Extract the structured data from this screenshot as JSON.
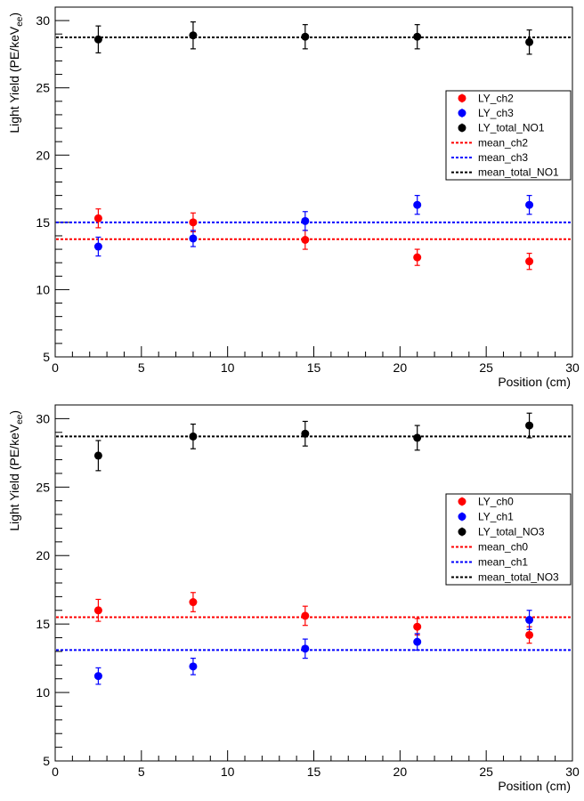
{
  "chart_data": [
    {
      "type": "scatter",
      "xlabel": "Position (cm)",
      "ylabel": "Light Yield (PE/keV",
      "ylabel_sub": "ee",
      "ylabel_close": ")",
      "xlim": [
        0,
        30
      ],
      "ylim": [
        5,
        31
      ],
      "xticks": [
        0,
        5,
        10,
        15,
        20,
        25,
        30
      ],
      "yticks": [
        5,
        10,
        15,
        20,
        25,
        30
      ],
      "grid": false,
      "legend_position": "right",
      "x": [
        2.5,
        8,
        14.5,
        21,
        27.5
      ],
      "series": [
        {
          "name": "LY_ch2",
          "color": "#ff0000",
          "values": [
            15.3,
            15.0,
            13.7,
            12.4,
            12.1
          ],
          "errors": [
            0.7,
            0.7,
            0.7,
            0.6,
            0.6
          ]
        },
        {
          "name": "LY_ch3",
          "color": "#0000ff",
          "values": [
            13.2,
            13.8,
            15.1,
            16.3,
            16.3
          ],
          "errors": [
            0.7,
            0.6,
            0.7,
            0.7,
            0.7
          ]
        },
        {
          "name": "LY_total_NO1",
          "color": "#000000",
          "values": [
            28.6,
            28.9,
            28.8,
            28.8,
            28.4
          ],
          "errors": [
            1.0,
            1.0,
            0.9,
            0.9,
            0.9
          ]
        }
      ],
      "lines": [
        {
          "name": "mean_ch2",
          "color": "#ff0000",
          "value": 13.75
        },
        {
          "name": "mean_ch3",
          "color": "#0000ff",
          "value": 15.0
        },
        {
          "name": "mean_total_NO1",
          "color": "#000000",
          "value": 28.75
        }
      ]
    },
    {
      "type": "scatter",
      "xlabel": "Position (cm)",
      "ylabel": "Light Yield (PE/keV",
      "ylabel_sub": "ee",
      "ylabel_close": ")",
      "xlim": [
        0,
        30
      ],
      "ylim": [
        5,
        31
      ],
      "xticks": [
        0,
        5,
        10,
        15,
        20,
        25,
        30
      ],
      "yticks": [
        5,
        10,
        15,
        20,
        25,
        30
      ],
      "grid": false,
      "legend_position": "right",
      "x": [
        2.5,
        8,
        14.5,
        21,
        27.5
      ],
      "series": [
        {
          "name": "LY_ch0",
          "color": "#ff0000",
          "values": [
            16.0,
            16.6,
            15.6,
            14.8,
            14.2
          ],
          "errors": [
            0.8,
            0.7,
            0.7,
            0.6,
            0.6
          ]
        },
        {
          "name": "LY_ch1",
          "color": "#0000ff",
          "values": [
            11.2,
            11.9,
            13.2,
            13.7,
            15.3
          ],
          "errors": [
            0.6,
            0.6,
            0.7,
            0.6,
            0.7
          ]
        },
        {
          "name": "LY_total_NO3",
          "color": "#000000",
          "values": [
            27.3,
            28.7,
            28.9,
            28.6,
            29.5
          ],
          "errors": [
            1.1,
            0.9,
            0.9,
            0.9,
            0.9
          ]
        }
      ],
      "lines": [
        {
          "name": "mean_ch0",
          "color": "#ff0000",
          "value": 15.5
        },
        {
          "name": "mean_ch1",
          "color": "#0000ff",
          "value": 13.1
        },
        {
          "name": "mean_total_NO3",
          "color": "#000000",
          "value": 28.7
        }
      ]
    }
  ]
}
